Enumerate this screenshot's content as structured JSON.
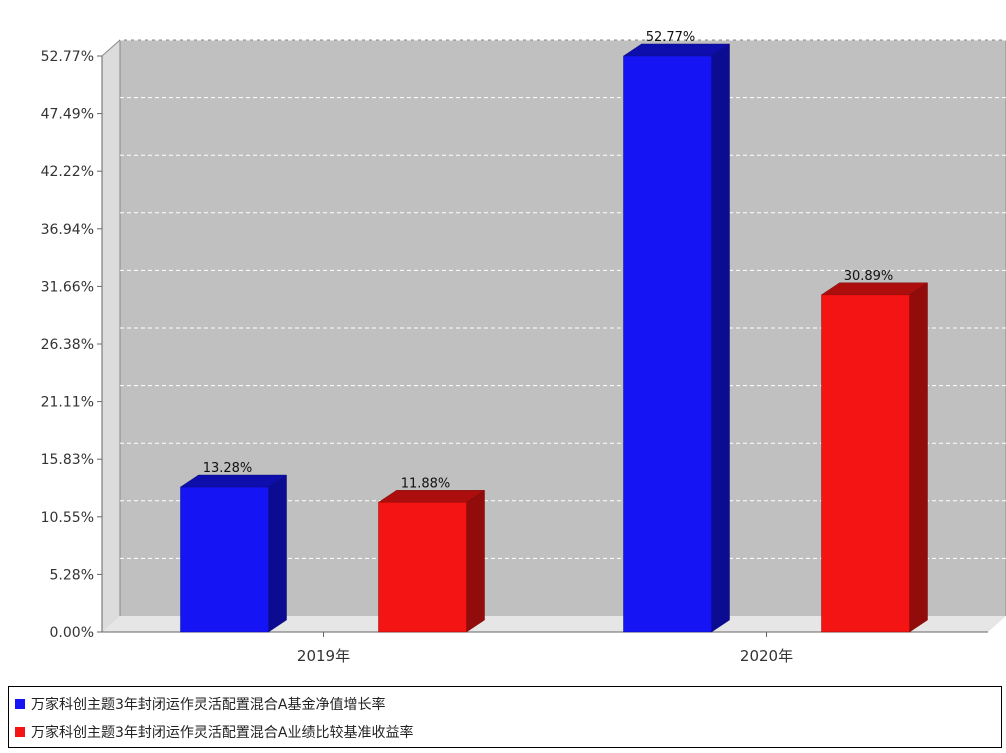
{
  "chart_data": {
    "type": "bar",
    "categories": [
      "2019年",
      "2020年"
    ],
    "series": [
      {
        "name": "万家科创主题3年封闭运作灵活配置混合A基金净值增长率",
        "values": [
          13.28,
          52.77
        ],
        "color": "#1414f5"
      },
      {
        "name": "万家科创主题3年封闭运作灵活配置混合A业绩比较基准收益率",
        "values": [
          11.88,
          30.89
        ],
        "color": "#f51414"
      }
    ],
    "data_labels": [
      [
        "13.28%",
        "52.77%"
      ],
      [
        "11.88%",
        "30.89%"
      ]
    ],
    "ylim": [
      0,
      52.77
    ],
    "yticks": [
      "0.00%",
      "5.28%",
      "10.55%",
      "15.83%",
      "21.11%",
      "26.38%",
      "31.66%",
      "36.94%",
      "42.22%",
      "47.49%",
      "52.77%"
    ],
    "grid": true,
    "legend": "bottom"
  }
}
